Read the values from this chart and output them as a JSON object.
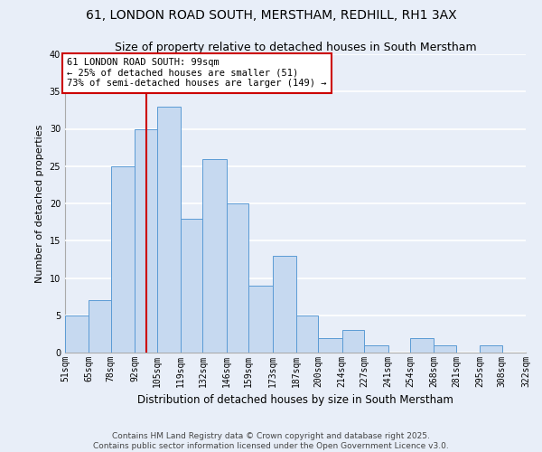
{
  "title": "61, LONDON ROAD SOUTH, MERSTHAM, REDHILL, RH1 3AX",
  "subtitle": "Size of property relative to detached houses in South Merstham",
  "xlabel": "Distribution of detached houses by size in South Merstham",
  "ylabel": "Number of detached properties",
  "bar_color": "#c6d9f0",
  "bar_edge_color": "#5b9bd5",
  "background_color": "#e8eef8",
  "grid_color": "#ffffff",
  "vline_x": 99,
  "vline_color": "#cc0000",
  "annotation_line1": "61 LONDON ROAD SOUTH: 99sqm",
  "annotation_line2": "← 25% of detached houses are smaller (51)",
  "annotation_line3": "73% of semi-detached houses are larger (149) →",
  "annotation_box_color": "#ffffff",
  "annotation_box_edge": "#cc0000",
  "bins": [
    51,
    65,
    78,
    92,
    105,
    119,
    132,
    146,
    159,
    173,
    187,
    200,
    214,
    227,
    241,
    254,
    268,
    281,
    295,
    308,
    322
  ],
  "bin_labels": [
    "51sqm",
    "65sqm",
    "78sqm",
    "92sqm",
    "105sqm",
    "119sqm",
    "132sqm",
    "146sqm",
    "159sqm",
    "173sqm",
    "187sqm",
    "200sqm",
    "214sqm",
    "227sqm",
    "241sqm",
    "254sqm",
    "268sqm",
    "281sqm",
    "295sqm",
    "308sqm",
    "322sqm"
  ],
  "values": [
    5,
    7,
    25,
    30,
    33,
    18,
    26,
    20,
    9,
    13,
    5,
    2,
    3,
    1,
    0,
    2,
    1,
    0,
    1,
    0
  ],
  "ylim": [
    0,
    40
  ],
  "yticks": [
    0,
    5,
    10,
    15,
    20,
    25,
    30,
    35,
    40
  ],
  "footer_text": "Contains HM Land Registry data © Crown copyright and database right 2025.\nContains public sector information licensed under the Open Government Licence v3.0.",
  "title_fontsize": 10,
  "subtitle_fontsize": 9,
  "xlabel_fontsize": 8.5,
  "ylabel_fontsize": 8,
  "tick_fontsize": 7,
  "footer_fontsize": 6.5,
  "annotation_fontsize": 7.5
}
